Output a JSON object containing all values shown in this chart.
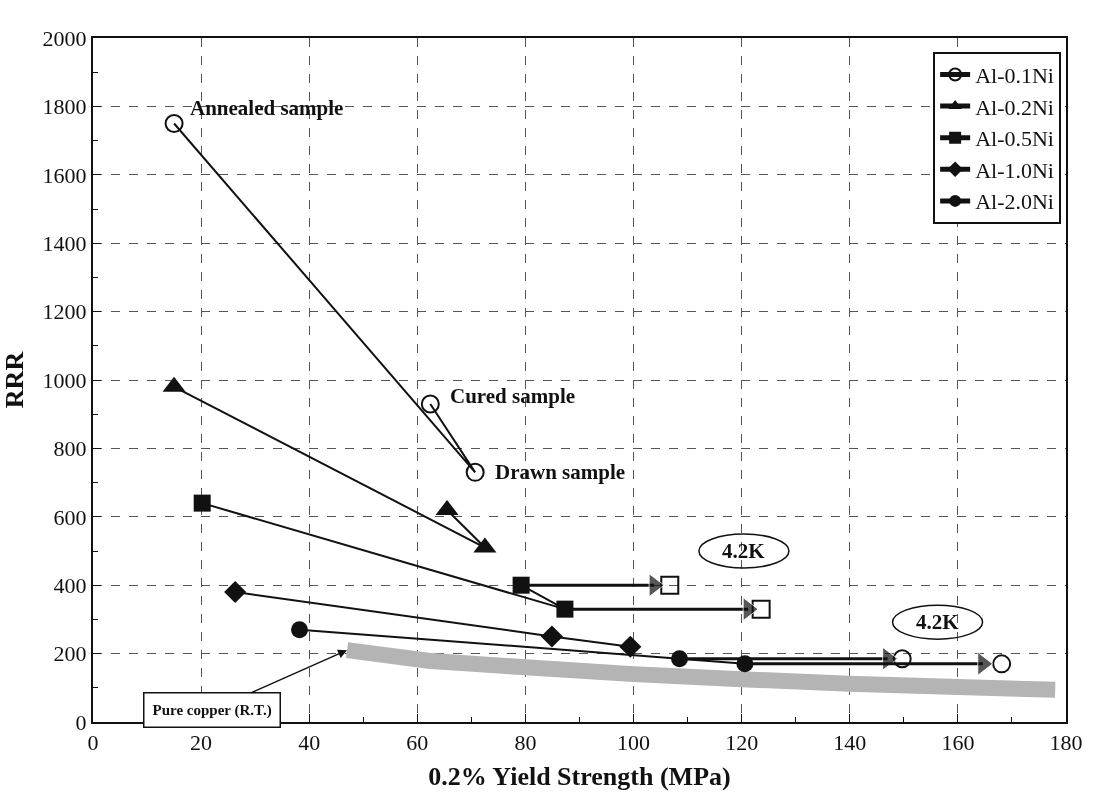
{
  "chart_data": {
    "type": "line",
    "xlabel": "0.2% Yield Strength (MPa)",
    "ylabel": "RRR",
    "xlim": [
      0,
      180
    ],
    "xticks": [
      0,
      20,
      40,
      60,
      80,
      100,
      120,
      140,
      160,
      180
    ],
    "ylim": [
      0,
      2000
    ],
    "yticks": [
      0,
      200,
      400,
      600,
      800,
      1000,
      1200,
      1400,
      1600,
      1800,
      2000
    ],
    "grid": true,
    "legend": "top right",
    "line_style": "solid",
    "series": [
      {
        "name": "Al-0.1Ni",
        "color": "#111111",
        "marker": "circle-open",
        "x": [
          15,
          70.7,
          62.4
        ],
        "values": [
          1750,
          730,
          930
        ]
      },
      {
        "name": "Al-0.2Ni",
        "color": "#111111",
        "marker": "triangle",
        "x": [
          15,
          72.5,
          65.5
        ],
        "values": [
          980,
          510,
          620
        ]
      },
      {
        "name": "Al-0.5Ni",
        "color": "#111111",
        "marker": "square",
        "x": [
          20.2,
          87.3,
          79.2
        ],
        "values": [
          640,
          330,
          400
        ]
      },
      {
        "name": "Al-1.0Ni",
        "color": "#111111",
        "marker": "diamond",
        "x": [
          26.3,
          84.9,
          99.4
        ],
        "values": [
          380,
          250,
          220
        ]
      },
      {
        "name": "Al-2.0Ni",
        "color": "#111111",
        "marker": "circle",
        "x": [
          38.2,
          108.5,
          120.6
        ],
        "values": [
          270,
          185,
          170
        ]
      },
      {
        "type": "scatter",
        "color": "#111111",
        "marker": "square-open",
        "x": [
          106.7,
          123.6
        ],
        "values": [
          400,
          330
        ]
      },
      {
        "type": "scatter",
        "color": "#111111",
        "marker": "circle-open",
        "x": [
          149.7,
          168.1
        ],
        "values": [
          185,
          170
        ]
      },
      {
        "color": "#111111",
        "marker": "triangle",
        "x": [
          79.2,
          103.8
        ],
        "values": [
          400,
          400
        ]
      },
      {
        "color": "#111111",
        "marker": "triangle",
        "x": [
          87.3,
          121.2
        ],
        "values": [
          330,
          330
        ]
      },
      {
        "color": "#111111",
        "marker": "triangle",
        "x": [
          108.5,
          147
        ],
        "values": [
          185,
          185
        ]
      },
      {
        "color": "#111111",
        "marker": "triangle",
        "x": [
          120.6,
          164.6
        ],
        "values": [
          170,
          170
        ]
      },
      {
        "color": "#b4b4b4",
        "marker": "none",
        "x": [
          47,
          62,
          80,
          100,
          120,
          140,
          160,
          178
        ],
        "values": [
          210,
          179,
          160,
          140,
          125,
          112,
          102,
          94
        ]
      }
    ],
    "annotations": [
      {
        "text": "Annealed sample",
        "x": 15,
        "y": 1750
      },
      {
        "text": "Cured sample",
        "x": 62.4,
        "y": 930
      },
      {
        "text": "Drawn sample",
        "x": 70.7,
        "y": 730
      },
      "4.2K",
      "4.2K",
      {
        "text": "Pure copper (R.T.)",
        "x": 47,
        "y": 210
      }
    ]
  }
}
